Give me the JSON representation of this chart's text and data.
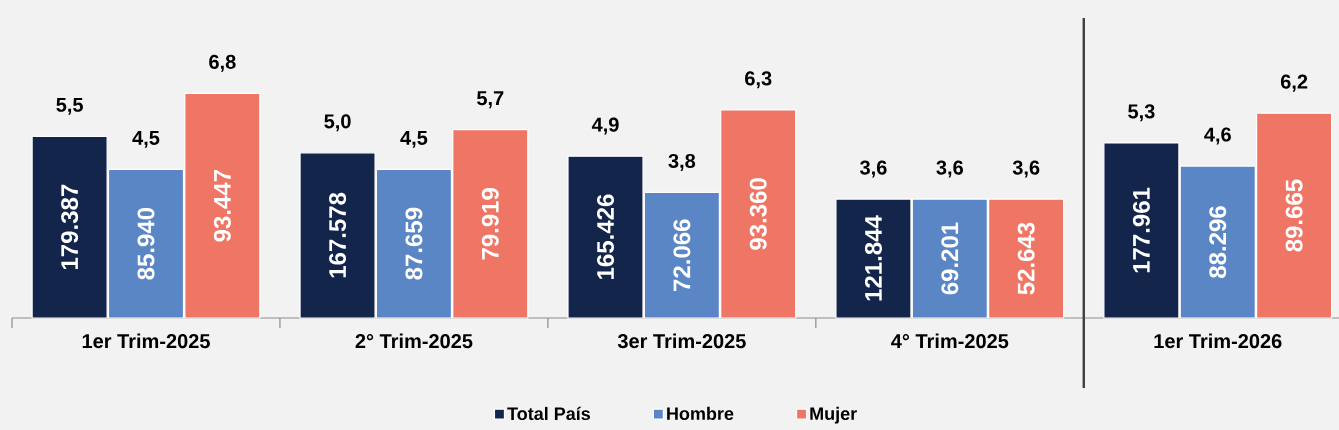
{
  "chart_data": {
    "type": "bar",
    "categories": [
      "1er Trim-2025",
      "2° Trim-2025",
      "3er Trim-2025",
      "4° Trim-2025",
      "1er Trim-2026"
    ],
    "series": [
      {
        "name": "Total País",
        "color": "#14254b",
        "values": [
          5.5,
          5.0,
          4.9,
          3.6,
          5.3
        ],
        "value_labels": [
          "5,5",
          "5,0",
          "4,9",
          "3,6",
          "5,3"
        ]
      },
      {
        "name": "Hombre",
        "color": "#5b86c5",
        "values": [
          4.5,
          4.5,
          3.8,
          3.6,
          4.6
        ],
        "value_labels": [
          "4,5",
          "4,5",
          "3,8",
          "3,6",
          "4,6"
        ]
      },
      {
        "name": "Mujer",
        "color": "#ef7565",
        "values": [
          6.8,
          5.7,
          6.3,
          3.6,
          6.2
        ],
        "value_labels": [
          "6,8",
          "5,7",
          "6,3",
          "3,6",
          "6,2"
        ]
      }
    ],
    "annotations": [
      "179.387",
      "167.578",
      "165.426",
      "121.844",
      "177.961",
      "85.940",
      "87.659",
      "72.066",
      "69.201",
      "88.296",
      "93.447",
      "79.919",
      "93.360",
      "52.643",
      "89.665"
    ],
    "legend": "bottom"
  }
}
